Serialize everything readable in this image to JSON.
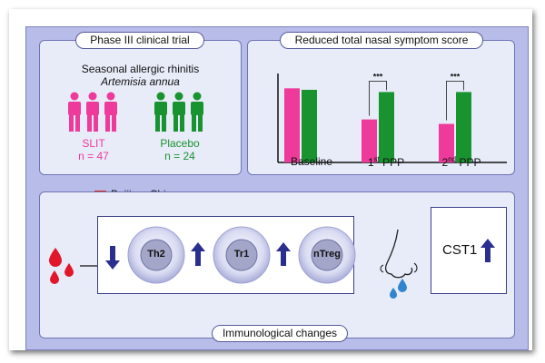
{
  "trial": {
    "title": "Phase III clinical trial",
    "condition": "Seasonal allergic rhinitis",
    "species": "Artemisia annua",
    "groups": [
      {
        "label": "SLIT",
        "n": "n = 47",
        "color": "#ee3a9a"
      },
      {
        "label": "Placebo",
        "n": "n = 24",
        "color": "#18932f"
      }
    ],
    "location": "Beijing, China"
  },
  "chart_panel": {
    "title": "Reduced total nasal symptom score",
    "significance": "***"
  },
  "chart_data": {
    "type": "bar",
    "categories": [
      "Baseline",
      "1st PPP",
      "2nd PPP"
    ],
    "series": [
      {
        "values": [
          1.0,
          0.58,
          0.52
        ],
        "color": "#ee3a9a"
      },
      {
        "values": [
          0.98,
          0.95,
          0.95
        ],
        "color": "#18932f"
      }
    ],
    "ylim": [
      0,
      1.2
    ],
    "grid": false
  },
  "immuno": {
    "title": "Immunological changes",
    "cells": [
      {
        "label": "Th2",
        "direction": "down",
        "icon": "arrow-down-icon"
      },
      {
        "label": "Tr1",
        "direction": "up",
        "icon": "arrow-up-icon"
      },
      {
        "label": "nTreg",
        "direction": "up",
        "icon": "arrow-up-icon"
      }
    ],
    "marker": {
      "label": "CST1",
      "direction": "up",
      "icon": "arrow-up-icon"
    }
  },
  "colors": {
    "arrow": "#2a2f8f",
    "blood": "#e0182a",
    "drop": "#2f86cf"
  }
}
